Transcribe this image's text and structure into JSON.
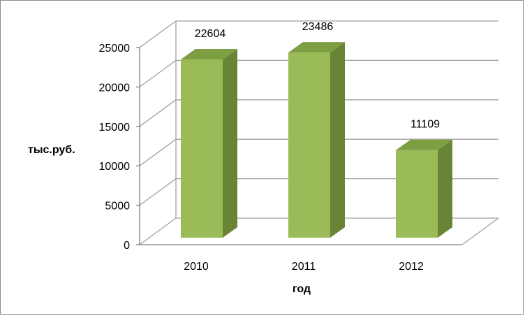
{
  "chart_data": {
    "type": "bar",
    "categories": [
      "2010",
      "2011",
      "2012"
    ],
    "values": [
      22604,
      23486,
      11109
    ],
    "data_labels": [
      "22604",
      "23486",
      "11109"
    ],
    "yticks": [
      "0",
      "5000",
      "10000",
      "15000",
      "20000",
      "25000"
    ],
    "ylim": [
      0,
      25000
    ],
    "xlabel": "год",
    "ylabel": "тыс.руб.",
    "title": "",
    "grid": true,
    "legend": "none",
    "colors": {
      "bar_front": "#9bbb59",
      "bar_side": "#6a8437",
      "bar_top": "#7e9e42",
      "grid": "#a0a0a0"
    }
  }
}
